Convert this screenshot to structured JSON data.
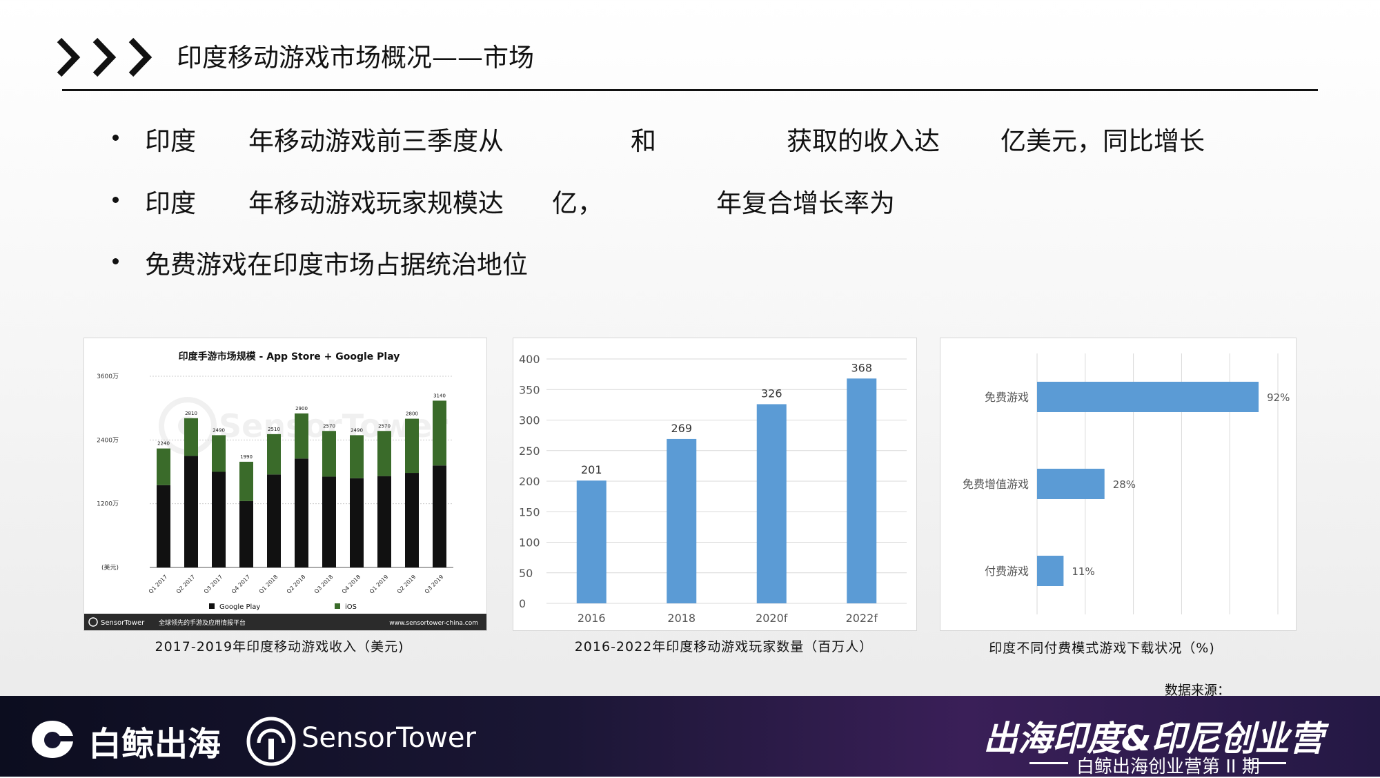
{
  "header": {
    "title": "印度移动游戏市场概况——市场"
  },
  "bullets": [
    {
      "fragments": [
        "印度",
        "年移动游戏前三季度从",
        "和",
        "获取的收入达",
        "亿美元，同比增长"
      ]
    },
    {
      "fragments": [
        "印度",
        "年移动游戏玩家规模达",
        "亿，",
        "年复合增长率为"
      ]
    },
    {
      "fragments": [
        "免费游戏在印度市场占据统治地位"
      ]
    }
  ],
  "charts": {
    "revenue": {
      "caption": "2017-2019年印度移动游戏收入（美元)",
      "chart_data": {
        "type": "bar",
        "title": "印度手游市场规模 - App Store + Google Play",
        "categories": [
          "Q1 2017",
          "Q2 2017",
          "Q3 2017",
          "Q4 2017",
          "Q1 2018",
          "Q2 2018",
          "Q3 2018",
          "Q4 2018",
          "Q1 2019",
          "Q2 2019",
          "Q3 2019"
        ],
        "series": [
          {
            "name": "Google Play",
            "values": [
              1550,
              2100,
              1800,
              1250,
              1750,
              2050,
              1710,
              1680,
              1720,
              1780,
              1920
            ],
            "color": "#111111"
          },
          {
            "name": "iOS",
            "values": [
              690,
              710,
              690,
              740,
              760,
              850,
              860,
              810,
              850,
              1020,
              1220
            ],
            "color": "#3a6b2a"
          }
        ],
        "totals": [
          "2240",
          "2810",
          "2490",
          "1990",
          "2510",
          "2900",
          "2570",
          "2490",
          "2570",
          "2800",
          "3140"
        ],
        "y_ticks": [
          {
            "value": 3600,
            "label": "3600万"
          },
          {
            "value": 2400,
            "label": "2400万"
          },
          {
            "value": 1200,
            "label": "1200万"
          },
          {
            "value": 0,
            "label": "(美元)"
          }
        ],
        "ylim": [
          0,
          3600
        ],
        "watermark": "SensorTower",
        "footer_brand": "SensorTower",
        "footer_tagline": "全球领先的手游及应用情报平台",
        "footer_url": "www.sensortower-china.com"
      }
    },
    "players": {
      "caption": "2016-2022年印度移动游戏玩家数量（百万人）",
      "chart_data": {
        "type": "bar",
        "categories": [
          "2016",
          "2018",
          "2020f",
          "2022f"
        ],
        "values": [
          201,
          269,
          326,
          368
        ],
        "ylim": [
          0,
          400
        ],
        "y_ticks": [
          0,
          50,
          100,
          150,
          200,
          250,
          300,
          350,
          400
        ],
        "grid": true,
        "color": "#5b9bd5"
      }
    },
    "payment": {
      "caption": "印度不同付费模式游戏下载状况（%)",
      "chart_data": {
        "type": "bar",
        "orientation": "horizontal",
        "categories": [
          "免费游戏",
          "免费增值游戏",
          "付费游戏"
        ],
        "values": [
          92,
          28,
          11
        ],
        "value_labels": [
          "92%",
          "28%",
          "11%"
        ],
        "xlim": [
          0,
          100
        ],
        "grid": true,
        "color": "#5b9bd5"
      }
    }
  },
  "source_label": "数据来源：",
  "footer": {
    "brand1": "白鲸出海",
    "brand2": "SensorTower",
    "event_title": "出海印度&印尼创业营",
    "event_subtitle": "白鲸出海创业营第 II 期"
  }
}
